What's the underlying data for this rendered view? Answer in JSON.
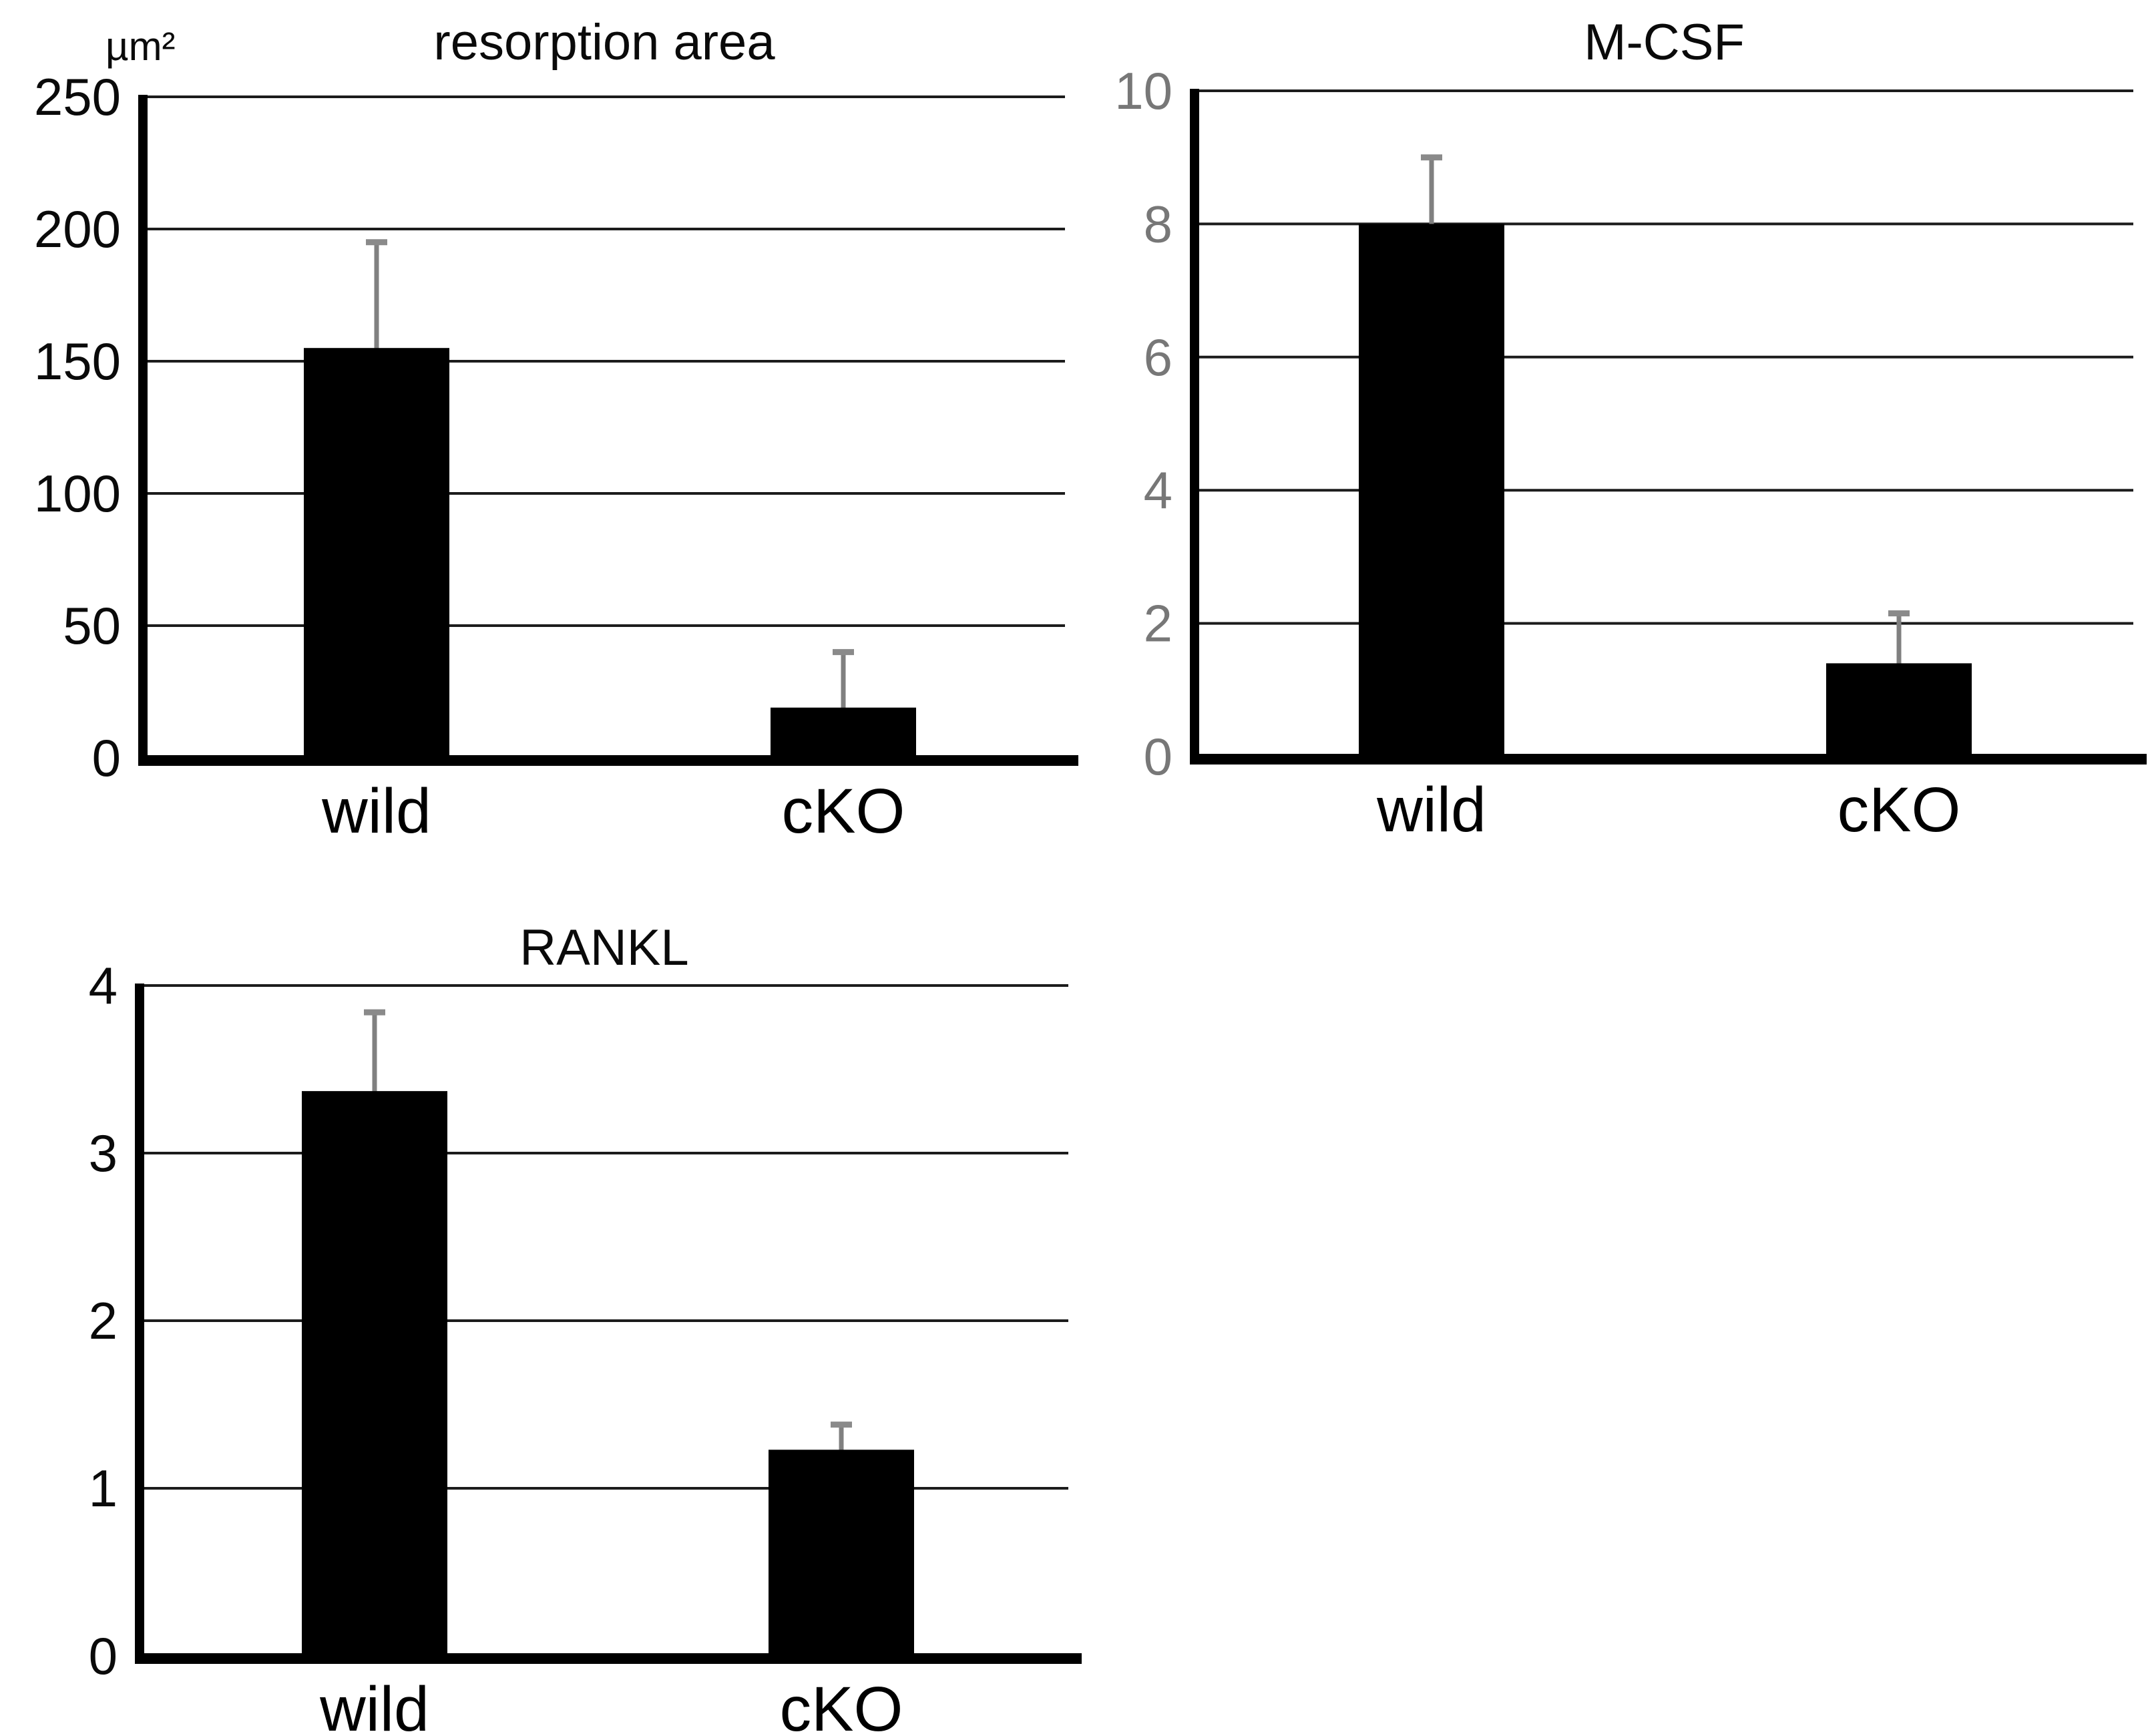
{
  "figure": {
    "description_labels": [
      "resorption area",
      "M-CSF",
      "RANKL"
    ]
  },
  "colors": {
    "background": "#ffffff",
    "bar": "#000000",
    "grid": "#1c1c1c",
    "axis": "#000000",
    "error": "#808080",
    "error_cap": "#8a8a8a",
    "tick_label_dark": "#0a0a0a",
    "tick_label_gray": "#777777",
    "category_label": "#000000",
    "title": "#0a0a0a"
  },
  "chart_data": [
    {
      "type": "bar",
      "title": "resorption area",
      "ylabel": "µm²",
      "xlabel": "",
      "categories": [
        "wild",
        "cKO"
      ],
      "values": [
        155,
        19
      ],
      "errors_up": [
        40,
        21
      ],
      "ylim": [
        0,
        250
      ],
      "yticks": [
        0,
        50,
        100,
        150,
        200,
        250
      ],
      "bar_color": "#000000",
      "grid": true,
      "legend": false
    },
    {
      "type": "bar",
      "title": "M-CSF",
      "ylabel": "",
      "xlabel": "",
      "categories": [
        "wild",
        "cKO"
      ],
      "values": [
        8.0,
        1.4
      ],
      "errors_up": [
        1.0,
        0.75
      ],
      "ylim": [
        0,
        10
      ],
      "yticks": [
        0,
        2,
        4,
        6,
        8,
        10
      ],
      "bar_color": "#000000",
      "grid": true,
      "legend": false
    },
    {
      "type": "bar",
      "title": "RANKL",
      "ylabel": "",
      "xlabel": "",
      "categories": [
        "wild",
        "cKO"
      ],
      "values": [
        3.37,
        1.23
      ],
      "errors_up": [
        0.47,
        0.15
      ],
      "ylim": [
        0,
        4
      ],
      "yticks": [
        0,
        1,
        2,
        3,
        4
      ],
      "bar_color": "#000000",
      "grid": true,
      "legend": false
    }
  ]
}
